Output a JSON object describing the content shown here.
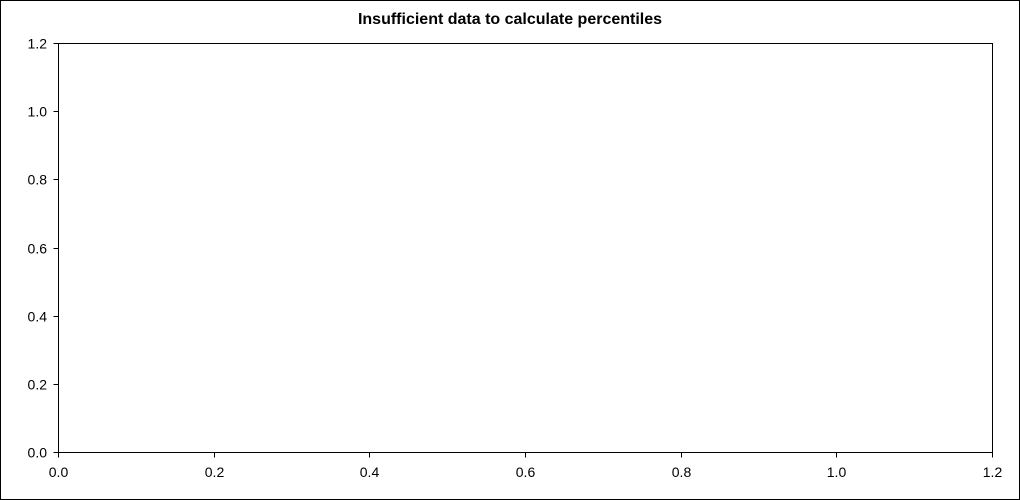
{
  "chart_data": {
    "type": "scatter",
    "title": "Insufficient data to calculate percentiles",
    "xlabel": "",
    "ylabel": "",
    "xlim": [
      0.0,
      1.2
    ],
    "ylim": [
      0.0,
      1.2
    ],
    "x_ticks": [
      0.0,
      0.2,
      0.4,
      0.6,
      0.8,
      1.0,
      1.2
    ],
    "x_tick_labels": [
      "0.0",
      "0.2",
      "0.4",
      "0.6",
      "0.8",
      "1.0",
      "1.2"
    ],
    "y_ticks": [
      0.0,
      0.2,
      0.4,
      0.6,
      0.8,
      1.0,
      1.2
    ],
    "y_tick_labels": [
      "1.2",
      "1.0",
      "0.8",
      "0.6",
      "0.4",
      "0.2",
      "0.0"
    ],
    "y_tick_values": [
      1.2,
      1.0,
      0.8,
      0.6,
      0.4,
      0.2,
      0.0
    ],
    "grid": false,
    "legend": null,
    "series": [],
    "colors": {
      "axis": "#000000",
      "background": "#ffffff",
      "text": "#000000"
    }
  }
}
